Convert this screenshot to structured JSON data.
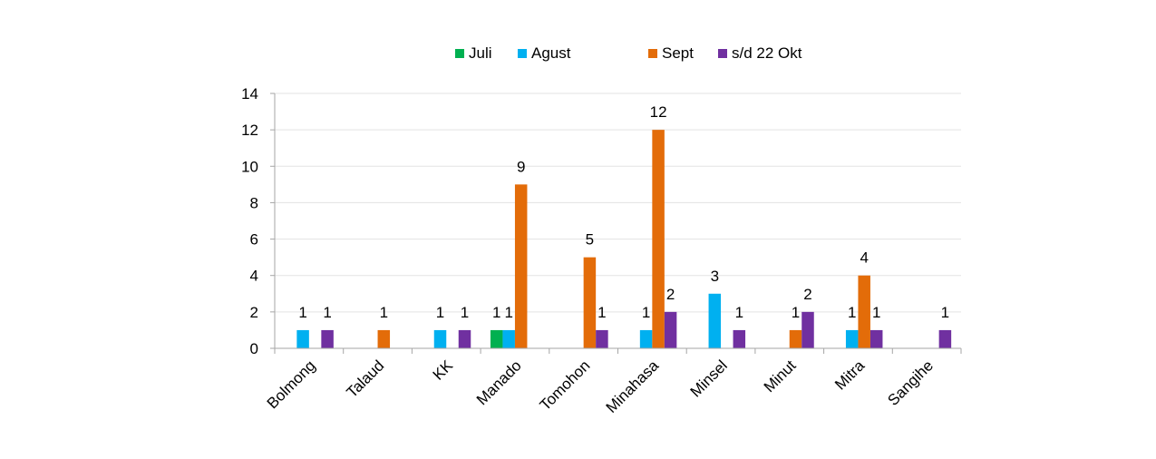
{
  "chart_data": {
    "type": "bar",
    "categories": [
      "Bolmong",
      "Talaud",
      "KK",
      "Manado",
      "Tomohon",
      "Minahasa",
      "Minsel",
      "Minut",
      "Mitra",
      "Sangihe"
    ],
    "series": [
      {
        "name": "Juli",
        "color": "#00b050",
        "values": [
          0,
          0,
          0,
          1,
          0,
          0,
          0,
          0,
          0,
          0
        ]
      },
      {
        "name": "Agust",
        "color": "#00b0f0",
        "values": [
          1,
          0,
          1,
          1,
          0,
          1,
          3,
          0,
          1,
          0
        ]
      },
      {
        "name": "Sept",
        "color": "#e36c09",
        "values": [
          0,
          1,
          0,
          9,
          5,
          12,
          0,
          1,
          4,
          0
        ]
      },
      {
        "name": "s/d 22 Okt",
        "color": "#7030a0",
        "values": [
          1,
          0,
          1,
          0,
          1,
          2,
          1,
          2,
          1,
          1
        ]
      }
    ],
    "yticks": [
      0,
      2,
      4,
      6,
      8,
      10,
      12,
      14
    ],
    "ylim": [
      0,
      14
    ],
    "grid": true,
    "legend": "top-center",
    "data_labels": true
  }
}
